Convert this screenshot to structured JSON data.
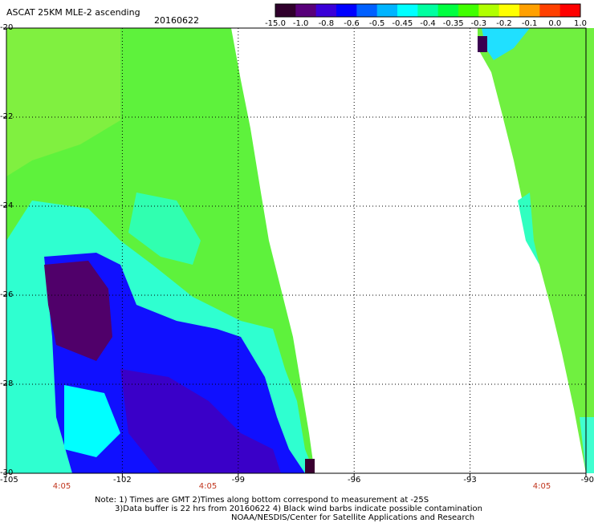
{
  "header": {
    "title": "ASCAT 25KM MLE-2 ascending",
    "date": "20160622"
  },
  "colorbar": {
    "colors": [
      "#30002c",
      "#58007a",
      "#3a00d8",
      "#0000ff",
      "#0060ff",
      "#00b4ff",
      "#00ffff",
      "#00ffa0",
      "#00ff40",
      "#40ff00",
      "#b0ff00",
      "#ffff00",
      "#ffa000",
      "#ff4000",
      "#ff0000"
    ],
    "tick_labels": [
      "-15.0",
      "-1.0",
      "-0.8",
      "-0.6",
      "-0.5",
      "-0.45",
      "-0.4",
      "-0.35",
      "-0.3",
      "-0.2",
      "-0.1",
      "0.0",
      "1.0"
    ]
  },
  "map": {
    "lon_range": [
      -105,
      -90
    ],
    "lat_range": [
      -30,
      -20
    ],
    "lon_labels": [
      "-105",
      "-102",
      "-99",
      "-96",
      "-93",
      "-90"
    ],
    "lat_labels": [
      "-20",
      "-22",
      "-24",
      "-26",
      "-28",
      "-30"
    ],
    "time_labels": [
      "4:05",
      "4:05",
      "4:05"
    ],
    "swath_colors": {
      "dark_purple": "#50005a",
      "blue": "#0000ff",
      "cyan": "#00ffff",
      "green": "#00ff40",
      "yellow_green": "#80ff00"
    }
  },
  "notes": {
    "line1": "Note: 1) Times are GMT 2)Times along bottom correspond to measurement at -25S",
    "line2": "3)Data buffer is 22 hrs from 20160622 4) Black wind barbs indicate possible contamination",
    "line3": "NOAA/NESDIS/Center for Satellite Applications and Research"
  }
}
